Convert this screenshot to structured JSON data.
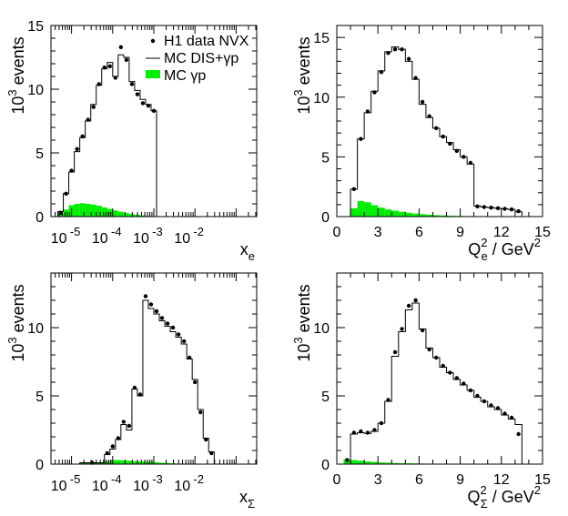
{
  "colors": {
    "data": "#000000",
    "mc_total": "#000000",
    "mc_gp": "#00ee00"
  },
  "legend": {
    "data": "H1 data NVX",
    "mc_total": "MC DIS+γp",
    "mc_gp": "MC γp"
  },
  "chart_data": [
    {
      "panel": "top-left",
      "type": "histogram",
      "xscale": "log",
      "xlim": [
        -5.5,
        -0.5
      ],
      "ylim": [
        0,
        15
      ],
      "yticks": [
        0,
        5,
        10,
        15
      ],
      "xtick_labels": [
        {
          "base": "10",
          "exp": "-5",
          "at": -5
        },
        {
          "base": "10",
          "exp": "-4",
          "at": -4
        },
        {
          "base": "10",
          "exp": "-3",
          "at": -3
        },
        {
          "base": "10",
          "exp": "-2",
          "at": -2
        }
      ],
      "ylabel": "10 events",
      "ylabel_exp": "3",
      "xlabel": "x",
      "xlabel_sub": "e",
      "bin_edges": [
        -5.333,
        -5.2,
        -5.067,
        -4.933,
        -4.8,
        -4.667,
        -4.533,
        -4.4,
        -4.267,
        -4.133,
        -4.0,
        -3.867,
        -3.733,
        -3.6,
        -3.467,
        -3.333,
        -3.2,
        -3.067,
        -2.933,
        -2.8,
        -2.667,
        -2.533,
        -2.4,
        -2.267,
        -2.133,
        -2.0,
        -1.867,
        -1.733,
        -1.6,
        -1.467,
        -1.333,
        -1.2,
        -1.067,
        -0.933,
        -0.8,
        -0.667
      ],
      "mc_total": [
        0.4,
        1.8,
        3.5,
        5.1,
        6.2,
        7.5,
        8.8,
        10.3,
        11.6,
        12.1,
        11.0,
        12.7,
        12.5,
        10.6,
        9.9,
        9.2,
        8.8,
        8.3,
        0,
        0,
        0,
        0,
        0,
        0,
        0,
        0,
        0,
        0,
        0,
        0,
        0,
        0,
        0,
        0,
        0
      ],
      "mc_gp": [
        0.25,
        0.55,
        0.9,
        1.0,
        1.05,
        1.0,
        0.95,
        0.85,
        0.72,
        0.6,
        0.48,
        0.38,
        0.28,
        0.2,
        0.14,
        0.09,
        0.05,
        0.03,
        0,
        0,
        0,
        0,
        0,
        0,
        0,
        0,
        0,
        0,
        0,
        0,
        0,
        0,
        0,
        0,
        0
      ],
      "data": [
        0.3,
        1.8,
        3.6,
        5.3,
        6.3,
        7.6,
        8.6,
        10.4,
        11.7,
        11.8,
        10.9,
        13.3,
        12.3,
        10.4,
        9.6,
        8.9,
        8.7,
        8.3
      ],
      "legend": true
    },
    {
      "panel": "top-right",
      "type": "histogram",
      "xscale": "linear",
      "xlim": [
        0,
        15
      ],
      "ylim": [
        0,
        16
      ],
      "yticks": [
        0,
        5,
        10,
        15
      ],
      "xticks": [
        0,
        3,
        6,
        9,
        12,
        15
      ],
      "xtick_labels": [
        "0",
        "3",
        "6",
        "9",
        "12",
        "15"
      ],
      "ylabel": "10 events",
      "ylabel_exp": "3",
      "xlabel": "Q",
      "xlabel_sup": "2",
      "xlabel_sub": "e",
      "xlabel_unit": " / GeV",
      "xlabel_unit_sup": "2",
      "bin_edges": [
        1.0,
        1.5,
        2.0,
        2.5,
        3.0,
        3.5,
        4.0,
        4.5,
        5.0,
        5.5,
        6.0,
        6.5,
        7.0,
        7.5,
        8.0,
        8.5,
        9.0,
        9.5,
        10.0,
        10.5,
        11.0,
        11.5,
        12.0,
        12.5,
        13.0,
        13.5
      ],
      "mc_total": [
        2.3,
        6.5,
        8.7,
        10.5,
        12.2,
        13.8,
        14.2,
        14.0,
        13.0,
        11.5,
        9.4,
        8.3,
        7.4,
        6.7,
        6.2,
        5.6,
        5.0,
        4.4,
        0.9,
        0.8,
        0.75,
        0.7,
        0.65,
        0.6,
        0.4
      ],
      "mc_gp": [
        0.7,
        1.3,
        1.2,
        0.95,
        0.75,
        0.6,
        0.5,
        0.4,
        0.32,
        0.26,
        0.2,
        0.16,
        0.12,
        0.1,
        0.08,
        0.06,
        0.05,
        0.04,
        0.03,
        0.02,
        0.02,
        0.01,
        0.01,
        0.01,
        0
      ],
      "data": [
        2.3,
        6.5,
        8.8,
        10.4,
        12.1,
        13.7,
        14.0,
        14.0,
        13.2,
        11.6,
        9.6,
        8.4,
        7.4,
        6.7,
        6.1,
        5.5,
        5.0,
        4.5,
        0.85,
        0.8,
        0.75,
        0.7,
        0.65,
        0.6,
        0.45
      ],
      "legend": false
    },
    {
      "panel": "bottom-left",
      "type": "histogram",
      "xscale": "log",
      "xlim": [
        -5.5,
        -0.5
      ],
      "ylim": [
        0,
        14
      ],
      "yticks": [
        0,
        5,
        10
      ],
      "xtick_labels": [
        {
          "base": "10",
          "exp": "-5",
          "at": -5
        },
        {
          "base": "10",
          "exp": "-4",
          "at": -4
        },
        {
          "base": "10",
          "exp": "-3",
          "at": -3
        },
        {
          "base": "10",
          "exp": "-2",
          "at": -2
        }
      ],
      "ylabel": "10 events",
      "ylabel_exp": "3",
      "xlabel": "x",
      "xlabel_sub": "Σ",
      "bin_edges": [
        -4.8,
        -4.2,
        -4.067,
        -3.933,
        -3.8,
        -3.667,
        -3.533,
        -3.4,
        -3.267,
        -3.133,
        -3.0,
        -2.867,
        -2.733,
        -2.6,
        -2.467,
        -2.333,
        -2.2,
        -2.067,
        -1.933,
        -1.8,
        -1.667,
        -1.533,
        -1.4
      ],
      "mc_total": [
        0.1,
        0.7,
        1.1,
        1.8,
        2.9,
        2.5,
        5.5,
        5.0,
        12.0,
        11.4,
        11.0,
        10.5,
        10.1,
        9.7,
        9.3,
        8.8,
        7.7,
        6.2,
        4.0,
        1.9,
        0.9,
        0
      ],
      "mc_gp": [
        0.1,
        0.2,
        0.3,
        0.3,
        0.28,
        0.25,
        0.22,
        0.2,
        0.18,
        0.16,
        0.13,
        0.1,
        0.08,
        0.06,
        0.04,
        0.03,
        0.02,
        0.01,
        0,
        0,
        0,
        0
      ],
      "data": [
        0.1,
        0.8,
        1.3,
        1.9,
        3.1,
        2.8,
        5.6,
        5.1,
        12.3,
        11.7,
        11.2,
        10.7,
        10.3,
        10.0,
        9.5,
        9.0,
        7.8,
        6.0,
        3.8,
        1.8,
        0.8,
        0
      ],
      "legend": false
    },
    {
      "panel": "bottom-right",
      "type": "histogram",
      "xscale": "linear",
      "xlim": [
        0,
        15
      ],
      "ylim": [
        0,
        14
      ],
      "yticks": [
        0,
        5,
        10
      ],
      "xticks": [
        0,
        3,
        6,
        9,
        12,
        15
      ],
      "xtick_labels": [
        "0",
        "3",
        "6",
        "9",
        "12",
        "15"
      ],
      "ylabel": "10 events",
      "ylabel_exp": "3",
      "xlabel": "Q",
      "xlabel_sup": "2",
      "xlabel_sub": "Σ",
      "xlabel_unit": " / GeV",
      "xlabel_unit_sup": "2",
      "bin_edges": [
        0.5,
        1.0,
        1.5,
        2.0,
        2.5,
        3.0,
        3.5,
        4.0,
        4.5,
        5.0,
        5.5,
        6.0,
        6.5,
        7.0,
        7.5,
        8.0,
        8.5,
        9.0,
        9.5,
        10.0,
        10.5,
        11.0,
        11.5,
        12.0,
        12.5,
        13.0,
        13.5
      ],
      "mc_total": [
        0,
        2.2,
        2.3,
        2.25,
        2.4,
        3.0,
        4.6,
        7.9,
        9.7,
        11.3,
        11.8,
        9.9,
        8.5,
        7.8,
        7.1,
        6.7,
        6.2,
        5.8,
        5.4,
        4.9,
        4.6,
        4.2,
        4.0,
        3.6,
        3.3,
        2.9
      ],
      "mc_gp": [
        0.35,
        0.3,
        0.25,
        0.2,
        0.16,
        0.12,
        0.1,
        0.08,
        0.07,
        0.06,
        0.05,
        0.04,
        0.03,
        0.03,
        0.02,
        0.02,
        0.02,
        0.01,
        0.01,
        0.01,
        0.01,
        0,
        0,
        0,
        0,
        0
      ],
      "data": [
        0.3,
        2.3,
        2.4,
        2.3,
        2.5,
        3.0,
        4.7,
        8.2,
        9.9,
        11.6,
        12.0,
        9.8,
        8.4,
        7.8,
        7.2,
        6.7,
        6.3,
        5.9,
        5.4,
        5.0,
        4.6,
        4.3,
        4.1,
        3.7,
        3.4,
        2.2
      ],
      "legend": false
    }
  ]
}
